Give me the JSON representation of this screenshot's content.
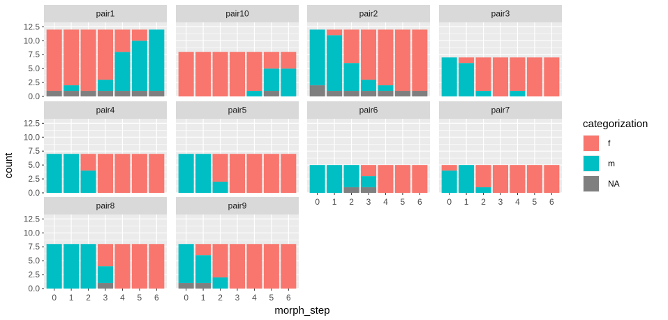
{
  "chart_data": {
    "type": "bar",
    "stacked": true,
    "facet_order": [
      "pair1",
      "pair10",
      "pair2",
      "pair3",
      "pair4",
      "pair5",
      "pair6",
      "pair7",
      "pair8",
      "pair9"
    ],
    "x_axis_under": [
      "pair6",
      "pair7",
      "pair8",
      "pair9"
    ],
    "y_axis_left": [
      "pair1",
      "pair4",
      "pair8"
    ],
    "x_ticks": [
      0,
      1,
      2,
      3,
      4,
      5,
      6
    ],
    "y_ticks": [
      0,
      2.5,
      5,
      7.5,
      10,
      12.5
    ],
    "y_tick_labels": [
      "0.0",
      "2.5",
      "5.0",
      "7.5",
      "10.0",
      "12.5"
    ],
    "ylim": [
      0,
      13.3
    ],
    "xlabel": "morph_step",
    "ylabel": "count",
    "legend": {
      "title": "categorization",
      "position": "right",
      "items": [
        {
          "key": "f",
          "label": "f",
          "color": "#F8766D"
        },
        {
          "key": "m",
          "label": "m",
          "color": "#00BFC4"
        },
        {
          "key": "na",
          "label": "NA",
          "color": "#7F7F7F"
        }
      ]
    },
    "stack_order": [
      "na",
      "m",
      "f"
    ],
    "panels": [
      {
        "name": "pair1",
        "bars": [
          {
            "x": 0,
            "f": 11,
            "m": 0,
            "na": 1
          },
          {
            "x": 1,
            "f": 10,
            "m": 1,
            "na": 1
          },
          {
            "x": 2,
            "f": 11,
            "m": 0,
            "na": 1
          },
          {
            "x": 3,
            "f": 9,
            "m": 2,
            "na": 1
          },
          {
            "x": 4,
            "f": 4,
            "m": 7,
            "na": 1
          },
          {
            "x": 5,
            "f": 2,
            "m": 9,
            "na": 1
          },
          {
            "x": 6,
            "f": 0,
            "m": 11,
            "na": 1
          }
        ]
      },
      {
        "name": "pair10",
        "bars": [
          {
            "x": 0,
            "f": 8,
            "m": 0,
            "na": 0
          },
          {
            "x": 1,
            "f": 8,
            "m": 0,
            "na": 0
          },
          {
            "x": 2,
            "f": 8,
            "m": 0,
            "na": 0
          },
          {
            "x": 3,
            "f": 8,
            "m": 0,
            "na": 0
          },
          {
            "x": 4,
            "f": 7,
            "m": 1,
            "na": 0
          },
          {
            "x": 5,
            "f": 3,
            "m": 4,
            "na": 1
          },
          {
            "x": 6,
            "f": 3,
            "m": 5,
            "na": 0
          }
        ]
      },
      {
        "name": "pair2",
        "bars": [
          {
            "x": 0,
            "f": 0,
            "m": 10,
            "na": 2
          },
          {
            "x": 1,
            "f": 1,
            "m": 10,
            "na": 1
          },
          {
            "x": 2,
            "f": 6,
            "m": 5,
            "na": 1
          },
          {
            "x": 3,
            "f": 9,
            "m": 2,
            "na": 1
          },
          {
            "x": 4,
            "f": 10,
            "m": 1,
            "na": 1
          },
          {
            "x": 5,
            "f": 11,
            "m": 0,
            "na": 1
          },
          {
            "x": 6,
            "f": 11,
            "m": 0,
            "na": 1
          }
        ]
      },
      {
        "name": "pair3",
        "bars": [
          {
            "x": 0,
            "f": 0,
            "m": 7,
            "na": 0
          },
          {
            "x": 1,
            "f": 1,
            "m": 6,
            "na": 0
          },
          {
            "x": 2,
            "f": 6,
            "m": 1,
            "na": 0
          },
          {
            "x": 3,
            "f": 7,
            "m": 0,
            "na": 0
          },
          {
            "x": 4,
            "f": 6,
            "m": 1,
            "na": 0
          },
          {
            "x": 5,
            "f": 7,
            "m": 0,
            "na": 0
          },
          {
            "x": 6,
            "f": 7,
            "m": 0,
            "na": 0
          }
        ]
      },
      {
        "name": "pair4",
        "bars": [
          {
            "x": 0,
            "f": 0,
            "m": 7,
            "na": 0
          },
          {
            "x": 1,
            "f": 0,
            "m": 7,
            "na": 0
          },
          {
            "x": 2,
            "f": 3,
            "m": 4,
            "na": 0
          },
          {
            "x": 3,
            "f": 7,
            "m": 0,
            "na": 0
          },
          {
            "x": 4,
            "f": 7,
            "m": 0,
            "na": 0
          },
          {
            "x": 5,
            "f": 7,
            "m": 0,
            "na": 0
          },
          {
            "x": 6,
            "f": 7,
            "m": 0,
            "na": 0
          }
        ]
      },
      {
        "name": "pair5",
        "bars": [
          {
            "x": 0,
            "f": 0,
            "m": 7,
            "na": 0
          },
          {
            "x": 1,
            "f": 0,
            "m": 7,
            "na": 0
          },
          {
            "x": 2,
            "f": 5,
            "m": 2,
            "na": 0
          },
          {
            "x": 3,
            "f": 7,
            "m": 0,
            "na": 0
          },
          {
            "x": 4,
            "f": 7,
            "m": 0,
            "na": 0
          },
          {
            "x": 5,
            "f": 7,
            "m": 0,
            "na": 0
          },
          {
            "x": 6,
            "f": 7,
            "m": 0,
            "na": 0
          }
        ]
      },
      {
        "name": "pair6",
        "bars": [
          {
            "x": 0,
            "f": 0,
            "m": 5,
            "na": 0
          },
          {
            "x": 1,
            "f": 0,
            "m": 5,
            "na": 0
          },
          {
            "x": 2,
            "f": 0,
            "m": 4,
            "na": 1
          },
          {
            "x": 3,
            "f": 2,
            "m": 2,
            "na": 1
          },
          {
            "x": 4,
            "f": 5,
            "m": 0,
            "na": 0
          },
          {
            "x": 5,
            "f": 5,
            "m": 0,
            "na": 0
          },
          {
            "x": 6,
            "f": 5,
            "m": 0,
            "na": 0
          }
        ]
      },
      {
        "name": "pair7",
        "bars": [
          {
            "x": 0,
            "f": 1,
            "m": 4,
            "na": 0
          },
          {
            "x": 1,
            "f": 0,
            "m": 5,
            "na": 0
          },
          {
            "x": 2,
            "f": 4,
            "m": 1,
            "na": 0
          },
          {
            "x": 3,
            "f": 5,
            "m": 0,
            "na": 0
          },
          {
            "x": 4,
            "f": 5,
            "m": 0,
            "na": 0
          },
          {
            "x": 5,
            "f": 5,
            "m": 0,
            "na": 0
          },
          {
            "x": 6,
            "f": 5,
            "m": 0,
            "na": 0
          }
        ]
      },
      {
        "name": "pair8",
        "bars": [
          {
            "x": 0,
            "f": 0,
            "m": 8,
            "na": 0
          },
          {
            "x": 1,
            "f": 0,
            "m": 8,
            "na": 0
          },
          {
            "x": 2,
            "f": 0,
            "m": 8,
            "na": 0
          },
          {
            "x": 3,
            "f": 4,
            "m": 3,
            "na": 1
          },
          {
            "x": 4,
            "f": 8,
            "m": 0,
            "na": 0
          },
          {
            "x": 5,
            "f": 8,
            "m": 0,
            "na": 0
          },
          {
            "x": 6,
            "f": 8,
            "m": 0,
            "na": 0
          }
        ]
      },
      {
        "name": "pair9",
        "bars": [
          {
            "x": 0,
            "f": 0,
            "m": 7,
            "na": 1
          },
          {
            "x": 1,
            "f": 2,
            "m": 5,
            "na": 1
          },
          {
            "x": 2,
            "f": 6,
            "m": 2,
            "na": 0
          },
          {
            "x": 3,
            "f": 8,
            "m": 0,
            "na": 0
          },
          {
            "x": 4,
            "f": 8,
            "m": 0,
            "na": 0
          },
          {
            "x": 5,
            "f": 8,
            "m": 0,
            "na": 0
          },
          {
            "x": 6,
            "f": 8,
            "m": 0,
            "na": 0
          }
        ]
      }
    ]
  }
}
